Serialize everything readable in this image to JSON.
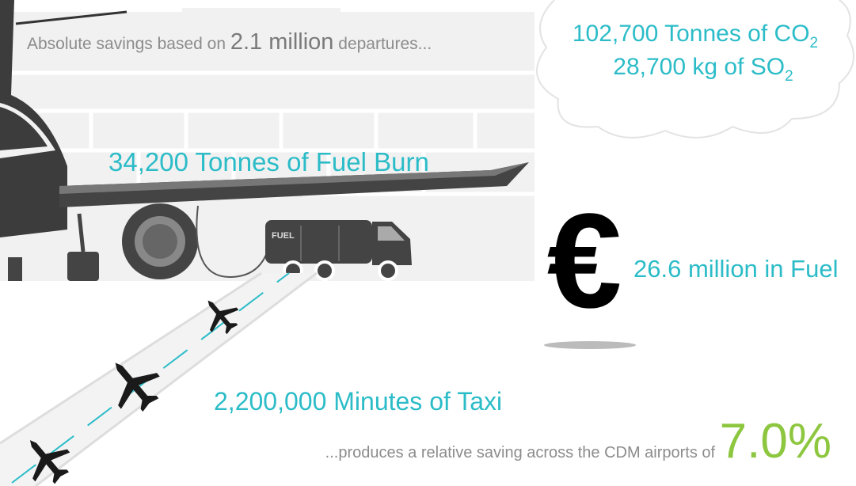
{
  "header": {
    "prefix": "Absolute savings based on",
    "highlight": "2.1 million",
    "suffix": "departures..."
  },
  "cloud": {
    "lines": [
      {
        "text": "102,700 Tonnes of CO",
        "sub": "2"
      },
      {
        "text": "28,700 kg of SO",
        "sub": "2"
      }
    ]
  },
  "fuel_burn": "34,200 Tonnes of Fuel Burn",
  "truck_label": "FUEL",
  "cost": {
    "symbol": "€",
    "text": "26.6 million in Fuel"
  },
  "taxi": "2,200,000 Minutes of Taxi",
  "footer": {
    "text": "...produces a relative saving across the CDM airports of",
    "highlight": "7.0%"
  }
}
